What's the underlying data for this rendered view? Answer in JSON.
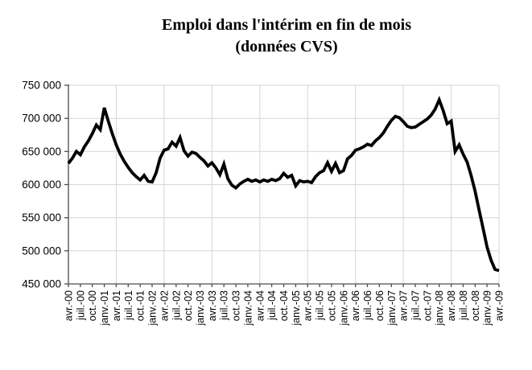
{
  "title": {
    "line1": "Emploi dans l'intérim en fin de mois",
    "line2": "(données CVS)"
  },
  "chart_data": {
    "type": "line",
    "title": "Emploi dans l'intérim en fin de mois",
    "subtitle": "(données CVS)",
    "frequency": "monthly",
    "x_start": "avr.-00",
    "x_end": "avr.-09",
    "x_tick_step_months": 3,
    "x_gridline_step_months": 12,
    "x_tick_labels": [
      "avr.-00",
      "juil.-00",
      "oct.-00",
      "janv.-01",
      "avr.-01",
      "juil.-01",
      "oct.-01",
      "janv.-02",
      "avr.-02",
      "juil.-02",
      "oct.-02",
      "janv.-03",
      "avr.-03",
      "juil.-03",
      "oct.-03",
      "janv.-04",
      "avr.-04",
      "juil.-04",
      "oct.-04",
      "janv.-05",
      "avr.-05",
      "juil.-05",
      "oct.-05",
      "janv.-06",
      "avr.-06",
      "juil.-06",
      "oct.-06",
      "janv.-07",
      "avr.-07",
      "juil.-07",
      "oct.-07",
      "janv.-08",
      "avr.-08",
      "juil.-08",
      "oct.-08",
      "janv.-09",
      "avr.-09"
    ],
    "y_ticks": [
      450000,
      500000,
      550000,
      600000,
      650000,
      700000,
      750000
    ],
    "y_tick_labels": [
      "450 000",
      "500 000",
      "550 000",
      "600 000",
      "650 000",
      "700 000",
      "750 000"
    ],
    "ylim": [
      450000,
      750000
    ],
    "grid": true,
    "legend": "none",
    "line_color": "#000000",
    "grid_color": "#d6d6d6",
    "axis_color": "#4d4d4d",
    "values": [
      632000,
      640000,
      650000,
      645000,
      657000,
      666000,
      677000,
      690000,
      683000,
      716000,
      696000,
      677000,
      660000,
      646000,
      635000,
      626000,
      618000,
      612000,
      607000,
      614000,
      605000,
      604000,
      618000,
      640000,
      652000,
      654000,
      664000,
      658000,
      671000,
      651000,
      643000,
      649000,
      647000,
      641000,
      636000,
      628000,
      633000,
      625000,
      615000,
      631000,
      609000,
      599000,
      595000,
      601000,
      605000,
      608000,
      605000,
      607000,
      604000,
      607000,
      605000,
      608000,
      606000,
      609000,
      617000,
      611000,
      614000,
      598000,
      606000,
      604000,
      605000,
      603000,
      612000,
      618000,
      621000,
      633000,
      620000,
      632000,
      618000,
      621000,
      639000,
      644000,
      652000,
      654000,
      657000,
      661000,
      659000,
      666000,
      671000,
      678000,
      688000,
      697000,
      703000,
      701000,
      695000,
      688000,
      686000,
      687000,
      691000,
      695000,
      699000,
      705000,
      714000,
      728000,
      712000,
      692000,
      696000,
      650000,
      660000,
      646000,
      634000,
      614000,
      590000,
      562000,
      534000,
      506000,
      486000,
      472000,
      470000
    ]
  }
}
